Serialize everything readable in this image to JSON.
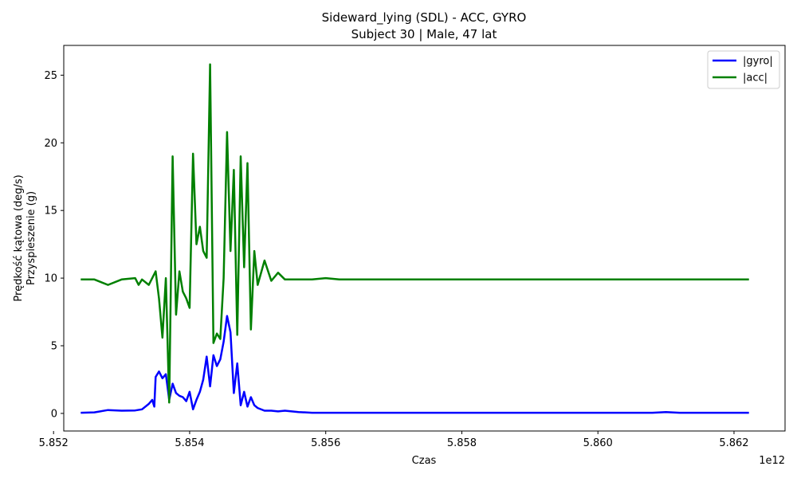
{
  "chart_data": {
    "type": "line",
    "title": "Sideward_lying (SDL) - ACC, GYRO",
    "subtitle": "Subject 30 | Male, 47 lat",
    "xlabel": "Czas",
    "ylabel_line1": "Prędkość kątowa (deg/s)",
    "ylabel_line2": "Przyspieszenie (g)",
    "x_offset_label": "1e12",
    "xlim": [
      5.85215,
      5.86275
    ],
    "ylim": [
      -1.3,
      27.2
    ],
    "xticks": [
      5.852,
      5.854,
      5.856,
      5.858,
      5.86,
      5.862
    ],
    "xtick_labels": [
      "5.852",
      "5.854",
      "5.856",
      "5.858",
      "5.860",
      "5.862"
    ],
    "yticks": [
      0,
      5,
      10,
      15,
      20,
      25
    ],
    "ytick_labels": [
      "0",
      "5",
      "10",
      "15",
      "20",
      "25"
    ],
    "grid": false,
    "legend_position": "top-right",
    "series": [
      {
        "name": "|gyro|",
        "color": "#0000ff",
        "x": [
          5.8524,
          5.8526,
          5.8528,
          5.853,
          5.8532,
          5.8533,
          5.8534,
          5.85345,
          5.85348,
          5.8535,
          5.85355,
          5.8536,
          5.85365,
          5.8537,
          5.85375,
          5.8538,
          5.85385,
          5.8539,
          5.85395,
          5.854,
          5.85405,
          5.8541,
          5.85415,
          5.8542,
          5.85425,
          5.8543,
          5.85435,
          5.8544,
          5.85445,
          5.8545,
          5.85455,
          5.8546,
          5.85465,
          5.8547,
          5.85475,
          5.8548,
          5.85485,
          5.8549,
          5.85495,
          5.855,
          5.8551,
          5.8552,
          5.8553,
          5.8554,
          5.8556,
          5.8558,
          5.856,
          5.8562,
          5.8564,
          5.8566,
          5.8568,
          5.857,
          5.8572,
          5.8574,
          5.8576,
          5.8578,
          5.858,
          5.8582,
          5.8584,
          5.8586,
          5.8588,
          5.859,
          5.8592,
          5.8594,
          5.8596,
          5.8598,
          5.86,
          5.8602,
          5.8604,
          5.8606,
          5.8608,
          5.861,
          5.8612,
          5.8614,
          5.8616,
          5.8618,
          5.862,
          5.86222
        ],
        "values": [
          0.05,
          0.08,
          0.25,
          0.2,
          0.22,
          0.3,
          0.7,
          1.0,
          0.5,
          2.7,
          3.1,
          2.6,
          2.9,
          1.0,
          2.2,
          1.5,
          1.3,
          1.2,
          0.9,
          1.6,
          0.3,
          1.0,
          1.6,
          2.5,
          4.2,
          2.0,
          4.3,
          3.5,
          4.0,
          5.3,
          7.2,
          6.0,
          1.5,
          3.7,
          0.6,
          1.6,
          0.5,
          1.2,
          0.6,
          0.4,
          0.2,
          0.2,
          0.15,
          0.2,
          0.1,
          0.05,
          0.05,
          0.05,
          0.05,
          0.05,
          0.05,
          0.05,
          0.05,
          0.05,
          0.05,
          0.05,
          0.05,
          0.05,
          0.05,
          0.05,
          0.05,
          0.05,
          0.05,
          0.05,
          0.05,
          0.05,
          0.05,
          0.05,
          0.05,
          0.05,
          0.05,
          0.1,
          0.05,
          0.05,
          0.05,
          0.05,
          0.05,
          0.05
        ]
      },
      {
        "name": "|acc|",
        "color": "#008000",
        "x": [
          5.8524,
          5.8526,
          5.8528,
          5.853,
          5.8532,
          5.85325,
          5.8533,
          5.8534,
          5.8535,
          5.85355,
          5.8536,
          5.85365,
          5.8537,
          5.85375,
          5.8538,
          5.85385,
          5.8539,
          5.85395,
          5.854,
          5.85405,
          5.8541,
          5.85415,
          5.8542,
          5.85425,
          5.8543,
          5.85435,
          5.8544,
          5.85445,
          5.8545,
          5.85455,
          5.8546,
          5.85465,
          5.8547,
          5.85475,
          5.8548,
          5.85485,
          5.8549,
          5.85495,
          5.855,
          5.8551,
          5.8552,
          5.8553,
          5.8554,
          5.8556,
          5.8558,
          5.856,
          5.8562,
          5.8564,
          5.8566,
          5.8568,
          5.857,
          5.8572,
          5.8574,
          5.8576,
          5.8578,
          5.858,
          5.8582,
          5.8584,
          5.8586,
          5.8588,
          5.859,
          5.8592,
          5.8594,
          5.8596,
          5.8598,
          5.86,
          5.8602,
          5.8604,
          5.8606,
          5.8608,
          5.861,
          5.8612,
          5.8614,
          5.8616,
          5.8618,
          5.862,
          5.86222
        ],
        "values": [
          9.9,
          9.9,
          9.5,
          9.9,
          10.0,
          9.5,
          9.9,
          9.5,
          10.5,
          8.5,
          5.6,
          10.0,
          0.8,
          19.0,
          7.3,
          10.5,
          9.0,
          8.5,
          7.8,
          19.2,
          12.5,
          13.8,
          12.0,
          11.5,
          25.8,
          5.2,
          5.9,
          5.5,
          10.0,
          20.8,
          12.0,
          18.0,
          5.8,
          19.0,
          10.8,
          18.5,
          6.2,
          12.0,
          9.5,
          11.3,
          9.8,
          10.4,
          9.9,
          9.9,
          9.9,
          10.0,
          9.9,
          9.9,
          9.9,
          9.9,
          9.9,
          9.9,
          9.9,
          9.9,
          9.9,
          9.9,
          9.9,
          9.9,
          9.9,
          9.9,
          9.9,
          9.9,
          9.9,
          9.9,
          9.9,
          9.9,
          9.9,
          9.9,
          9.9,
          9.9,
          9.9,
          9.9,
          9.9,
          9.9,
          9.9,
          9.9,
          9.9
        ]
      }
    ]
  }
}
